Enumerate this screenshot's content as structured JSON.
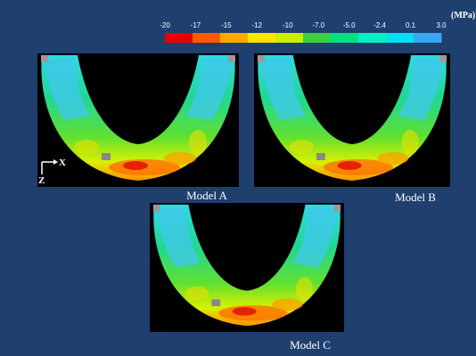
{
  "colorbar": {
    "unit": "(MPa)",
    "ticks": [
      "-20",
      "-17",
      "-15",
      "-12",
      "-10",
      "-7.0",
      "-5.0",
      "-2.4",
      "0.1",
      "3.0"
    ],
    "colors": [
      "#e60000",
      "#ff5a00",
      "#ffa800",
      "#ffe600",
      "#c8f000",
      "#3ccf3c",
      "#00e080",
      "#00f0c0",
      "#00e0f0",
      "#38a8f0"
    ]
  },
  "axes": {
    "x": "X",
    "z": "Z"
  },
  "panels": [
    {
      "label": "Model A"
    },
    {
      "label": "Model B"
    },
    {
      "label": "Model C"
    }
  ]
}
